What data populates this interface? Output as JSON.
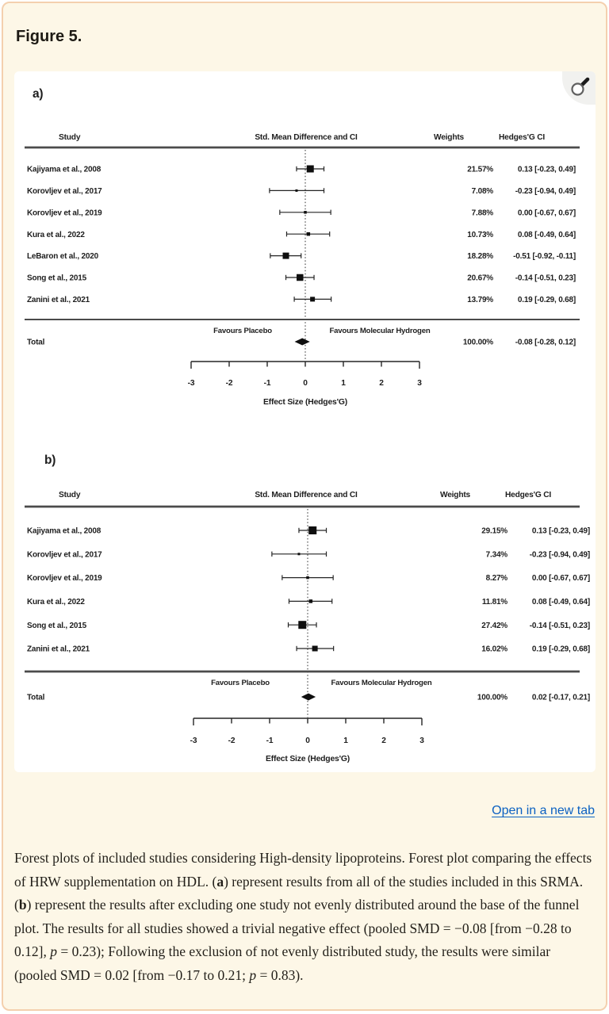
{
  "figure": {
    "title": "Figure 5."
  },
  "links": {
    "open_in_new_tab": "Open in a new tab"
  },
  "caption_segments": [
    {
      "t": "Forest plots of included studies considering High-density lipoproteins. Forest plot comparing the effects of HRW supplementation on HDL. ("
    },
    {
      "t": "a",
      "b": 1
    },
    {
      "t": ") represent results from all of the studies included in this SRMA. ("
    },
    {
      "t": "b",
      "b": 1
    },
    {
      "t": ") represent the results after excluding one study not evenly distributed around the base of the funnel plot. The results for all studies showed a trivial negative effect (pooled SMD = −0.08 [from −0.28 to 0.12], "
    },
    {
      "t": "p",
      "i": 1
    },
    {
      "t": " = 0.23); Following the exclusion of not evenly distributed study, the results were similar (pooled SMD = 0.02 [from −0.17 to 0.21; "
    },
    {
      "t": "p",
      "i": 1
    },
    {
      "t": " = 0.83)."
    }
  ],
  "chart_data": [
    {
      "type": "forest",
      "panel_label": "a)",
      "headers": {
        "study": "Study",
        "smd": "Std. Mean Difference and CI",
        "weights": "Weights",
        "ci": "Hedges'G CI"
      },
      "favours_left": "Favours Placebo",
      "favours_right": "Favours Molecular Hydrogen",
      "axis": {
        "label": "Effect Size (Hedges'G)",
        "min": -3,
        "max": 3,
        "ticks": [
          -3,
          -2,
          -1,
          0,
          1,
          2,
          3
        ]
      },
      "rows": [
        {
          "study": "Kajiyama et al., 2008",
          "weight": "21.57%",
          "est": 0.13,
          "lo": -0.23,
          "hi": 0.49,
          "ci_text": "0.13 [-0.23, 0.49]",
          "marker": 9
        },
        {
          "study": "Korovljev et al., 2017",
          "weight": "7.08%",
          "est": -0.23,
          "lo": -0.94,
          "hi": 0.49,
          "ci_text": "-0.23 [-0.94, 0.49]",
          "marker": 3
        },
        {
          "study": "Korovljev et al., 2019",
          "weight": "7.88%",
          "est": 0.0,
          "lo": -0.67,
          "hi": 0.67,
          "ci_text": "0.00 [-0.67, 0.67]",
          "marker": 3.5
        },
        {
          "study": "Kura et al., 2022",
          "weight": "10.73%",
          "est": 0.08,
          "lo": -0.49,
          "hi": 0.64,
          "ci_text": "0.08 [-0.49, 0.64]",
          "marker": 4.5
        },
        {
          "study": "LeBaron et al., 2020",
          "weight": "18.28%",
          "est": -0.51,
          "lo": -0.92,
          "hi": -0.11,
          "ci_text": "-0.51 [-0.92, -0.11]",
          "marker": 8
        },
        {
          "study": "Song et al., 2015",
          "weight": "20.67%",
          "est": -0.14,
          "lo": -0.51,
          "hi": 0.23,
          "ci_text": "-0.14 [-0.51, 0.23]",
          "marker": 8.5
        },
        {
          "study": "Zanini et al., 2021",
          "weight": "13.79%",
          "est": 0.19,
          "lo": -0.29,
          "hi": 0.68,
          "ci_text": "0.19 [-0.29, 0.68]",
          "marker": 6
        }
      ],
      "total": {
        "label": "Total",
        "weight": "100.00%",
        "est": -0.08,
        "lo": -0.28,
        "hi": 0.12,
        "ci_text": "-0.08 [-0.28, 0.12]"
      }
    },
    {
      "type": "forest",
      "panel_label": "b)",
      "headers": {
        "study": "Study",
        "smd": "Std. Mean Difference and CI",
        "weights": "Weights",
        "ci": "Hedges'G CI"
      },
      "favours_left": "Favours Placebo",
      "favours_right": "Favours Molecular Hydrogen",
      "axis": {
        "label": "Effect Size (Hedges'G)",
        "min": -3,
        "max": 3,
        "ticks": [
          -3,
          -2,
          -1,
          0,
          1,
          2,
          3
        ]
      },
      "rows": [
        {
          "study": "Kajiyama et al., 2008",
          "weight": "29.15%",
          "est": 0.13,
          "lo": -0.23,
          "hi": 0.49,
          "ci_text": "0.13 [-0.23, 0.49]",
          "marker": 10
        },
        {
          "study": "Korovljev et al., 2017",
          "weight": "7.34%",
          "est": -0.23,
          "lo": -0.94,
          "hi": 0.49,
          "ci_text": "-0.23 [-0.94, 0.49]",
          "marker": 3
        },
        {
          "study": "Korovljev et al., 2019",
          "weight": "8.27%",
          "est": 0.0,
          "lo": -0.67,
          "hi": 0.67,
          "ci_text": "0.00 [-0.67, 0.67]",
          "marker": 3.5
        },
        {
          "study": "Kura et al., 2022",
          "weight": "11.81%",
          "est": 0.08,
          "lo": -0.49,
          "hi": 0.64,
          "ci_text": "0.08 [-0.49, 0.64]",
          "marker": 4.5
        },
        {
          "study": "Song et al., 2015",
          "weight": "27.42%",
          "est": -0.14,
          "lo": -0.51,
          "hi": 0.23,
          "ci_text": "-0.14 [-0.51, 0.23]",
          "marker": 10
        },
        {
          "study": "Zanini et al., 2021",
          "weight": "16.02%",
          "est": 0.19,
          "lo": -0.29,
          "hi": 0.68,
          "ci_text": "0.19 [-0.29, 0.68]",
          "marker": 7
        }
      ],
      "total": {
        "label": "Total",
        "weight": "100.00%",
        "est": 0.02,
        "lo": -0.17,
        "hi": 0.21,
        "ci_text": "0.02 [-0.17, 0.21]"
      }
    }
  ]
}
